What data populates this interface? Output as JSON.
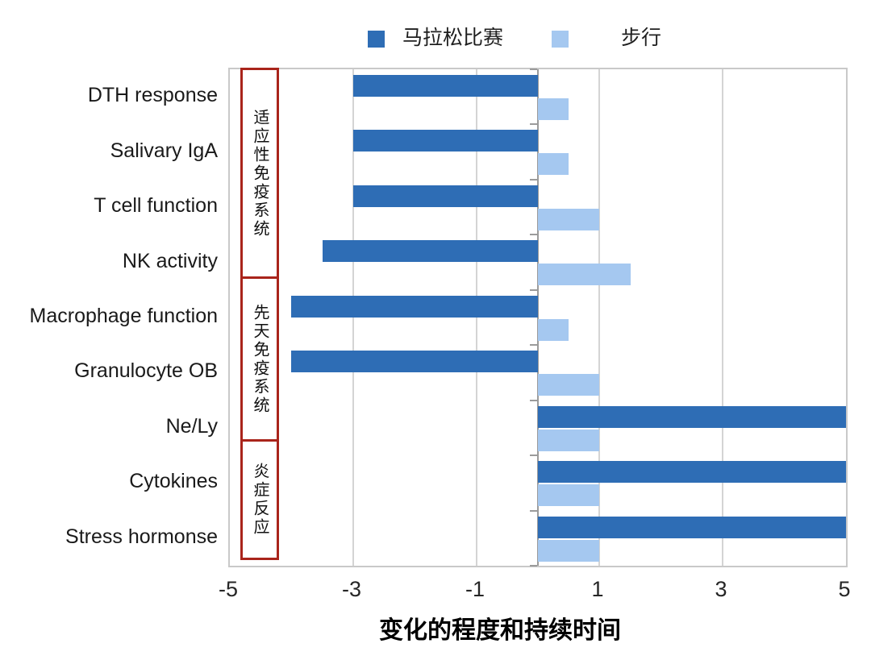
{
  "legend": {
    "items": [
      {
        "label": "马拉松比赛",
        "color": "#2E6DB5"
      },
      {
        "label": "步行",
        "color": "#A5C8F0"
      }
    ]
  },
  "chart_data": {
    "type": "bar",
    "orientation": "horizontal",
    "categories": [
      "DTH response",
      "Salivary IgA",
      "T cell function",
      "NK activity",
      "Macrophage function",
      "Granulocyte OB",
      "Ne/Ly",
      "Cytokines",
      "Stress hormonse"
    ],
    "series": [
      {
        "name": "马拉松比赛",
        "color": "#2E6DB5",
        "values": [
          -3,
          -3,
          -3,
          -3.5,
          -4,
          -4,
          5,
          5,
          5
        ]
      },
      {
        "name": "步行",
        "color": "#A5C8F0",
        "values": [
          0.5,
          0.5,
          1,
          1.5,
          0.5,
          1,
          1,
          1,
          1
        ]
      }
    ],
    "xlabel": "变化的程度和持续时间",
    "xlim": [
      -5,
      5
    ],
    "xticks": [
      -5,
      -3,
      -1,
      1,
      3,
      5
    ],
    "xtick_labels": [
      "-5",
      "-3",
      "-1",
      "1",
      "3",
      "5"
    ],
    "grid": "vertical-gridlines-at-odd-values",
    "legend_position": "top-center",
    "group_annotations": [
      {
        "label": "适应性免疫系统",
        "categories": [
          "DTH response",
          "Salivary IgA",
          "T cell function",
          "NK activity"
        ]
      },
      {
        "label": "先天免疫系统",
        "categories": [
          "Macrophage function",
          "Granulocyte OB",
          "Ne/Ly"
        ]
      },
      {
        "label": "炎症反应",
        "categories": [
          "Cytokines",
          "Stress hormonse"
        ]
      }
    ]
  },
  "colors": {
    "marathon_bar": "#2E6DB5",
    "walking_bar": "#A5C8F0",
    "group_box_border": "#A9241B",
    "gridline": "#D4D4D4",
    "zero_axis": "#9B9B9B",
    "plot_border": "#C9C9C9",
    "text": "#1A1A1A"
  }
}
